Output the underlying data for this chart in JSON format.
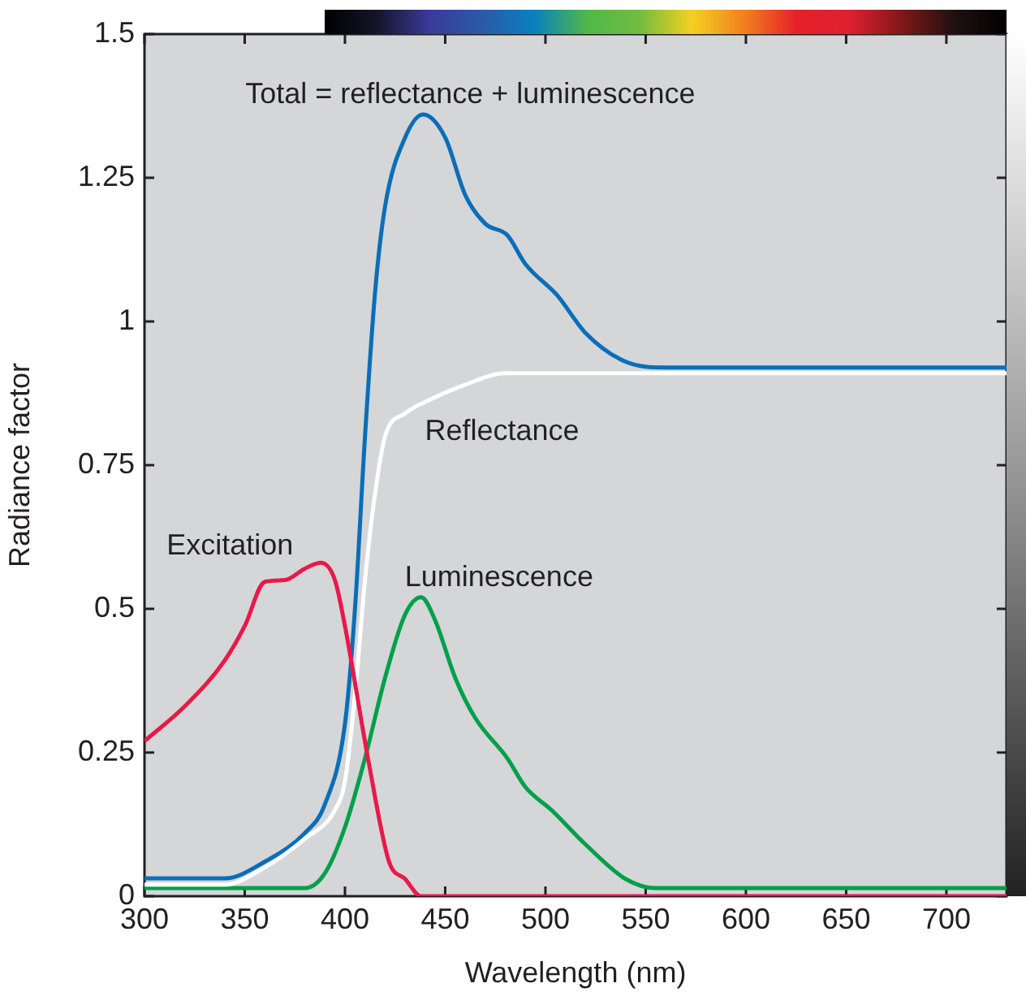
{
  "chart_data": {
    "type": "line",
    "xlabel": "Wavelength (nm)",
    "ylabel": "Radiance factor",
    "xlim": [
      300,
      730
    ],
    "xticks": [
      300,
      350,
      400,
      450,
      500,
      550,
      600,
      650,
      700
    ],
    "ylim": [
      0,
      1.5
    ],
    "yticks": [
      0,
      0.25,
      0.5,
      0.75,
      1,
      1.25,
      1.5
    ],
    "grid": false,
    "legend": false,
    "marker": "none",
    "line_style": "solid",
    "series": [
      {
        "name": "Excitation",
        "color": "#e8194a",
        "x": [
          300,
          320,
          340,
          350,
          360,
          370,
          380,
          388,
          395,
          400,
          412,
          422,
          430,
          438,
          445,
          730
        ],
        "values": [
          0.27,
          0.33,
          0.41,
          0.47,
          0.547,
          0.55,
          0.57,
          0.58,
          0.55,
          0.47,
          0.23,
          0.06,
          0.03,
          0,
          0,
          0
        ]
      },
      {
        "name": "Reflectance",
        "color": "#ffffff",
        "x": [
          300,
          340,
          360,
          380,
          395,
          400,
          405,
          410,
          415,
          420,
          430,
          440,
          460,
          480,
          490,
          730
        ],
        "values": [
          0.02,
          0.02,
          0.05,
          0.1,
          0.15,
          0.2,
          0.35,
          0.55,
          0.7,
          0.8,
          0.84,
          0.86,
          0.89,
          0.91,
          0.91,
          0.91
        ]
      },
      {
        "name": "Luminescence",
        "color": "#00a04a",
        "x": [
          300,
          380,
          390,
          400,
          410,
          420,
          430,
          438,
          445,
          455,
          465,
          481,
          490,
          503,
          520,
          540,
          555,
          730
        ],
        "values": [
          0.014,
          0.014,
          0.04,
          0.12,
          0.24,
          0.38,
          0.49,
          0.52,
          0.48,
          0.38,
          0.31,
          0.24,
          0.19,
          0.15,
          0.09,
          0.03,
          0.014,
          0.014
        ]
      },
      {
        "name": "Total = reflectance + luminescence",
        "color": "#0a6eb8",
        "x": [
          300,
          340,
          360,
          380,
          390,
          400,
          405,
          410,
          415,
          420,
          430,
          439,
          450,
          460,
          470,
          481,
          490,
          506,
          520,
          540,
          560,
          730
        ],
        "values": [
          0.031,
          0.031,
          0.06,
          0.11,
          0.16,
          0.3,
          0.5,
          0.8,
          1.05,
          1.2,
          1.32,
          1.36,
          1.32,
          1.22,
          1.17,
          1.15,
          1.1,
          1.045,
          0.98,
          0.93,
          0.92,
          0.92
        ]
      }
    ]
  }
}
